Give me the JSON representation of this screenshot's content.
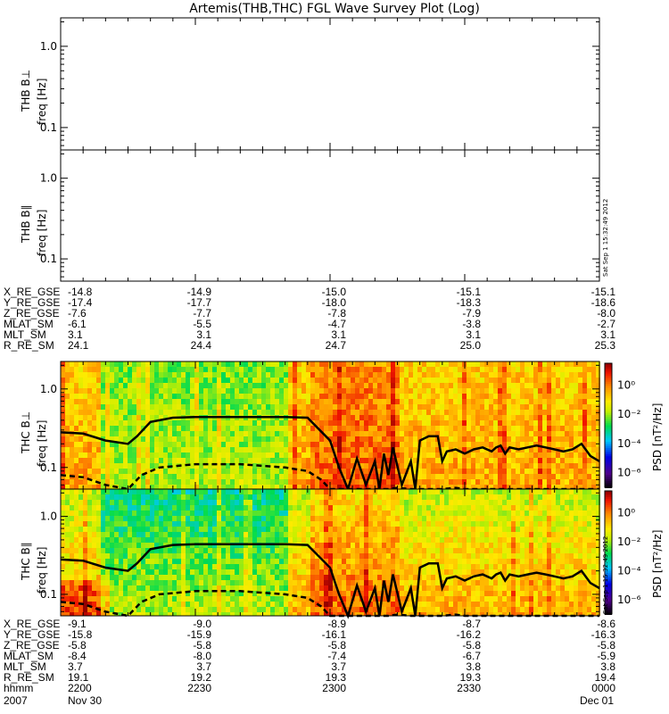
{
  "title": "Artemis(THB,THC) FGL Wave Survey Plot (Log)",
  "stamp": "Sat Sep  1 15:32:49 2012",
  "panels": [
    {
      "name": "THB B⊥",
      "ylabel": "freq [Hz]",
      "empty": true
    },
    {
      "name": "THB B∥",
      "ylabel": "freq [Hz]",
      "empty": true
    },
    {
      "name": "THC B⊥",
      "ylabel": "freq [Hz]",
      "empty": false
    },
    {
      "name": "THC B∥",
      "ylabel": "freq [Hz]",
      "empty": false
    }
  ],
  "colorbar": {
    "label": "PSD [nT²/Hz]",
    "ticks": [
      "10⁰",
      "10⁻²",
      "10⁻⁴",
      "10⁻⁶"
    ],
    "range_log": [
      -7,
      1.5
    ]
  },
  "ephem_thb": {
    "rows": [
      {
        "label": "X_RE_GSE",
        "values": [
          "-14.8",
          "-14.9",
          "-15.0",
          "-15.1",
          "-15.1"
        ]
      },
      {
        "label": "Y_RE_GSE",
        "values": [
          "-17.4",
          "-17.7",
          "-18.0",
          "-18.3",
          "-18.6"
        ]
      },
      {
        "label": "Z_RE_GSE",
        "values": [
          "-7.6",
          "-7.7",
          "-7.8",
          "-7.9",
          "-8.0"
        ]
      },
      {
        "label": "MLAT_SM",
        "values": [
          "-6.1",
          "-5.5",
          "-4.7",
          "-3.8",
          "-2.7"
        ]
      },
      {
        "label": "MLT_SM",
        "values": [
          "3.1",
          "3.1",
          "3.1",
          "3.1",
          "3.1"
        ]
      },
      {
        "label": "R_RE_SM",
        "values": [
          "24.1",
          "24.4",
          "24.7",
          "25.0",
          "25.3"
        ]
      }
    ]
  },
  "ephem_thc": {
    "rows": [
      {
        "label": "X_RE_GSE",
        "values": [
          "-9.1",
          "-9.0",
          "-8.9",
          "-8.7",
          "-8.6"
        ]
      },
      {
        "label": "Y_RE_GSE",
        "values": [
          "-15.8",
          "-15.9",
          "-16.1",
          "-16.2",
          "-16.3"
        ]
      },
      {
        "label": "Z_RE_GSE",
        "values": [
          "-5.8",
          "-5.8",
          "-5.8",
          "-5.8",
          "-5.8"
        ]
      },
      {
        "label": "MLAT_SM",
        "values": [
          "-8.4",
          "-8.0",
          "-7.4",
          "-6.7",
          "-5.9"
        ]
      },
      {
        "label": "MLT_SM",
        "values": [
          "3.7",
          "3.7",
          "3.7",
          "3.8",
          "3.8"
        ]
      },
      {
        "label": "R_RE_SM",
        "values": [
          "19.1",
          "19.2",
          "19.3",
          "19.3",
          "19.4"
        ]
      },
      {
        "label": "hhmm",
        "values": [
          "2200",
          "2230",
          "2300",
          "2330",
          "0000"
        ]
      }
    ],
    "date_label": "2007",
    "date_start": "Nov 30",
    "date_end": "Dec 01"
  },
  "chart_data": {
    "type": "heatmap",
    "title": "Artemis(THB,THC) FGL Wave Survey Plot (Log)",
    "xlabel": "hhmm",
    "ylabel": "freq [Hz]",
    "x_range_minutes": [
      0,
      120
    ],
    "ylim": [
      0.053,
      2.24
    ],
    "yticks": [
      "0.1",
      "1.0"
    ],
    "xticks": [
      "2200",
      "2230",
      "2300",
      "2330",
      "0000"
    ],
    "solid_curve": {
      "t": [
        0,
        5,
        10,
        15,
        17,
        20,
        25,
        30,
        40,
        50,
        55,
        60,
        62,
        64,
        66,
        68,
        70,
        71,
        72,
        73,
        74,
        76,
        78,
        79,
        80,
        82,
        84,
        85,
        86,
        88,
        90,
        92,
        94,
        96,
        97,
        98,
        99,
        100,
        102,
        104,
        106,
        108,
        110,
        112,
        114,
        116,
        118,
        120
      ],
      "f": [
        0.28,
        0.27,
        0.22,
        0.2,
        0.25,
        0.38,
        0.43,
        0.44,
        0.44,
        0.44,
        0.43,
        0.22,
        0.1,
        0.05,
        0.13,
        0.06,
        0.12,
        0.05,
        0.15,
        0.08,
        0.18,
        0.06,
        0.12,
        0.05,
        0.22,
        0.25,
        0.25,
        0.12,
        0.16,
        0.17,
        0.15,
        0.17,
        0.18,
        0.16,
        0.18,
        0.19,
        0.15,
        0.18,
        0.17,
        0.18,
        0.19,
        0.18,
        0.17,
        0.16,
        0.17,
        0.2,
        0.14,
        0.12
      ]
    },
    "dashed_curve": {
      "t": [
        0,
        5,
        10,
        15,
        18,
        22,
        30,
        40,
        50,
        55,
        58,
        60,
        62,
        70,
        73,
        75,
        78,
        80,
        82,
        85,
        88,
        90,
        95,
        100,
        110,
        120
      ],
      "f": [
        0.08,
        0.075,
        0.06,
        0.045,
        0.08,
        0.1,
        0.11,
        0.11,
        0.1,
        0.09,
        0.07,
        0.05,
        0.04,
        0.04,
        0.05,
        0.055,
        0.05,
        0.04,
        0.045,
        0.05,
        0.055,
        0.04,
        0.04,
        0.04,
        0.04,
        0.04
      ]
    }
  }
}
